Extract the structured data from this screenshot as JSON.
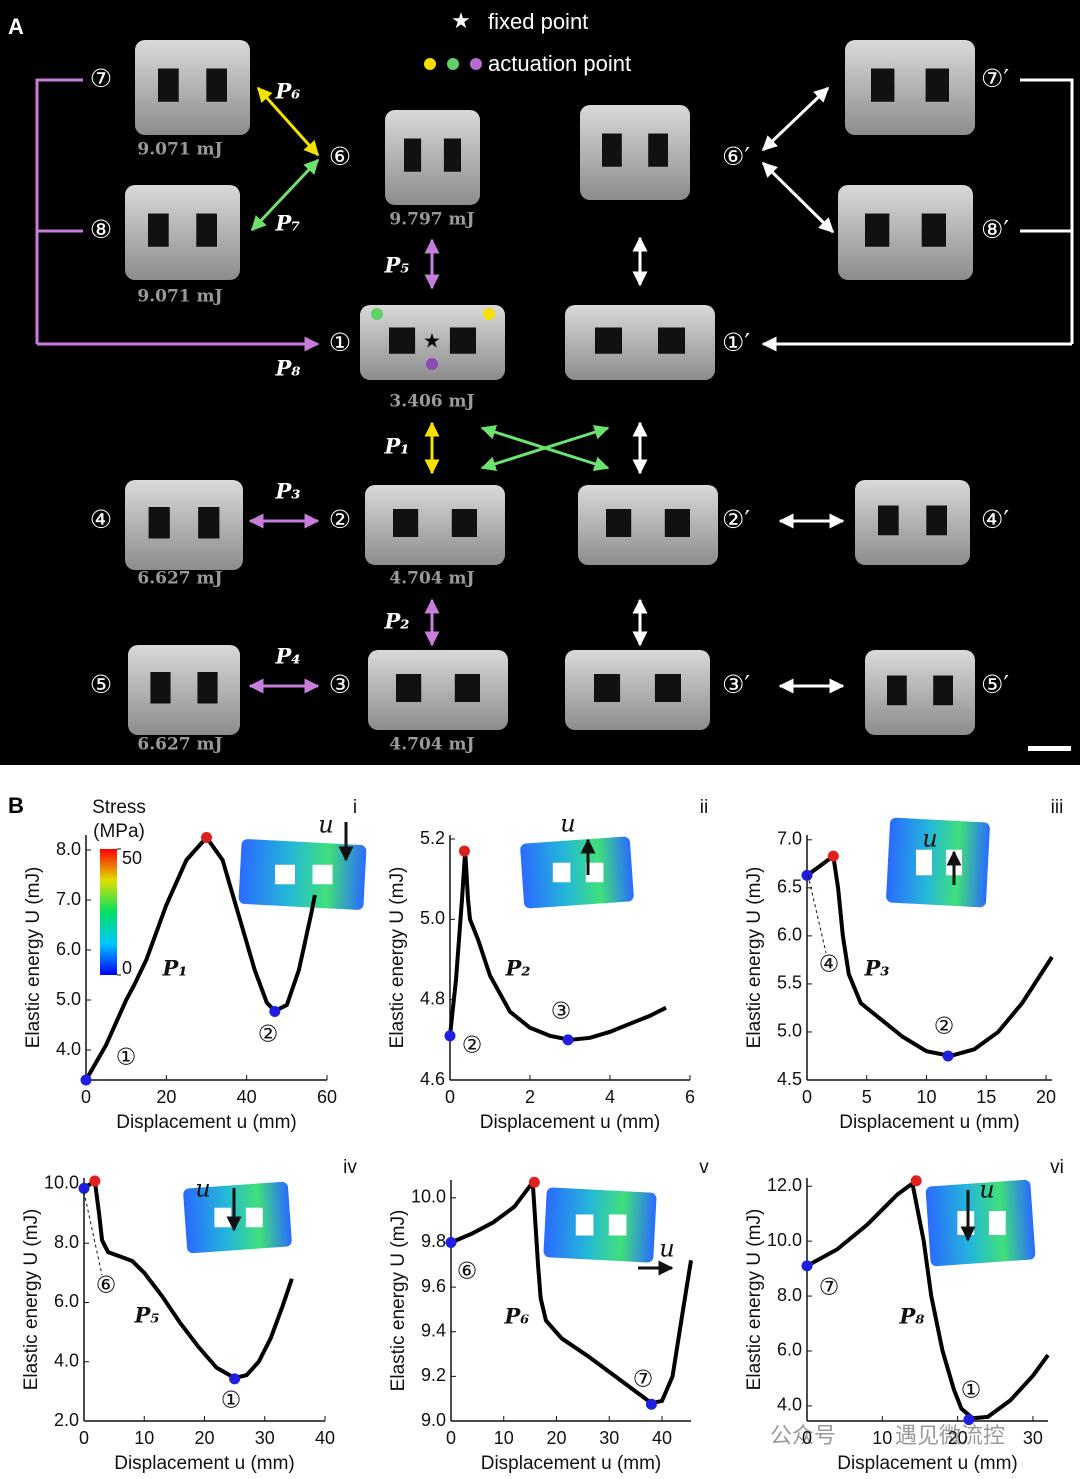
{
  "panel_a": {
    "label": "A",
    "legend": {
      "fixed": "fixed point",
      "actuation": "actuation point"
    },
    "nodes": [
      {
        "label": "⑦",
        "energy": "9.071 mJ"
      },
      {
        "label": "⑧",
        "energy": "9.071 mJ"
      },
      {
        "label": "⑥",
        "energy": "9.797 mJ"
      },
      {
        "label": "①",
        "energy": "3.406 mJ"
      },
      {
        "label": "②",
        "energy": "4.704 mJ"
      },
      {
        "label": "③",
        "energy": "4.704 mJ"
      },
      {
        "label": "④",
        "energy": "6.627 mJ"
      },
      {
        "label": "⑤",
        "energy": "6.627 mJ"
      }
    ],
    "primed_nodes": [
      "⑥′",
      "⑦′",
      "⑧′",
      "①′",
      "②′",
      "③′",
      "④′",
      "⑤′"
    ],
    "paths": [
      "P₁",
      "P₂",
      "P₃",
      "P₄",
      "P₅",
      "P₆",
      "P₇",
      "P₈"
    ]
  },
  "panel_b_label": "B",
  "watermark": [
    "公众号",
    "遇见微流控"
  ],
  "chart_data": [
    {
      "type": "line",
      "label": "i",
      "xlabel": "Displacement u (mm)",
      "ylabel": "Elastic energy U (mJ)",
      "xlim": [
        0,
        60
      ],
      "ylim": [
        3.4,
        8.3
      ],
      "xticks": [
        0,
        20,
        40,
        60
      ],
      "yticks": [
        {
          "value": 4,
          "label": "4.0"
        },
        {
          "value": 5,
          "label": "5.0"
        },
        {
          "value": 6,
          "label": "6.0"
        },
        {
          "value": 7,
          "label": "7.0"
        },
        {
          "value": 8,
          "label": "8.0"
        }
      ],
      "color": "#000000",
      "x": [
        0,
        5,
        10,
        12,
        15,
        20,
        25,
        30,
        34,
        38,
        42,
        45,
        47,
        50,
        53,
        56,
        57
      ],
      "values": [
        3.4,
        4.1,
        5.0,
        5.3,
        5.8,
        6.9,
        7.8,
        8.25,
        7.8,
        6.7,
        5.6,
        4.95,
        4.78,
        4.9,
        5.6,
        6.7,
        7.1
      ],
      "markers": {
        "x": [
          0,
          30,
          47
        ],
        "values": [
          3.4,
          8.25,
          4.77
        ],
        "colors": [
          "#1f1fe0",
          "#e01f1f",
          "#1f1fe0"
        ]
      },
      "annotations": [
        "①",
        "②",
        "P₁"
      ],
      "inset_label": "u",
      "colorbar": {
        "title": "Stress",
        "unit": "(MPa)",
        "clim": [
          0,
          50
        ],
        "cticks": [
          0,
          50
        ]
      }
    },
    {
      "type": "line",
      "label": "ii",
      "xlabel": "Displacement u (mm)",
      "ylabel": "Elastic energy U (mJ)",
      "xlim": [
        0,
        6
      ],
      "ylim": [
        4.6,
        5.21
      ],
      "xticks": [
        0,
        2,
        4,
        6
      ],
      "yticks": [
        4.6,
        4.8,
        {
          "value": 5,
          "label": "5.0"
        },
        5.2
      ],
      "color": "#000000",
      "x": [
        0,
        0.15,
        0.3,
        0.38,
        0.45,
        0.5,
        0.7,
        1.0,
        1.5,
        2,
        2.5,
        3,
        3.5,
        4,
        4.5,
        5,
        5.4
      ],
      "values": [
        4.71,
        4.85,
        5.05,
        5.17,
        5.05,
        5.0,
        4.95,
        4.86,
        4.77,
        4.73,
        4.71,
        4.7,
        4.705,
        4.72,
        4.74,
        4.76,
        4.78
      ],
      "markers": {
        "x": [
          0,
          0.36,
          2.95
        ],
        "values": [
          4.71,
          5.17,
          4.7
        ],
        "colors": [
          "#1f1fe0",
          "#e01f1f",
          "#1f1fe0"
        ]
      },
      "annotations": [
        "②",
        "③",
        "P₂"
      ],
      "inset_label": "u"
    },
    {
      "type": "line",
      "label": "iii",
      "xlabel": "Displacement u (mm)",
      "ylabel": "Elastic energy U (mJ)",
      "xlim": [
        0,
        20.5
      ],
      "ylim": [
        4.5,
        7.05
      ],
      "xticks": [
        0,
        5,
        10,
        15,
        20
      ],
      "yticks": [
        4.5,
        {
          "value": 5,
          "label": "5.0"
        },
        5.5,
        {
          "value": 6,
          "label": "6.0"
        },
        6.5,
        {
          "value": 7,
          "label": "7.0"
        }
      ],
      "color": "#000000",
      "x": [
        0,
        1,
        2.2,
        2.6,
        3,
        3.5,
        4.5,
        6,
        8,
        10,
        12,
        14,
        16,
        18,
        20.5
      ],
      "values": [
        6.63,
        6.72,
        6.83,
        6.5,
        6.0,
        5.6,
        5.3,
        5.15,
        4.95,
        4.8,
        4.75,
        4.82,
        5.0,
        5.3,
        5.78
      ],
      "markers": {
        "x": [
          0,
          2.2,
          11.8
        ],
        "values": [
          6.63,
          6.83,
          4.75
        ],
        "colors": [
          "#1f1fe0",
          "#e01f1f",
          "#1f1fe0"
        ]
      },
      "annotations": [
        "④",
        "②",
        "P₃"
      ],
      "inset_label": "u"
    },
    {
      "type": "line",
      "label": "iv",
      "xlabel": "Displacement u (mm)",
      "ylabel": "Elastic energy U (mJ)",
      "xlim": [
        0,
        40
      ],
      "ylim": [
        2,
        10.2
      ],
      "xticks": [
        0,
        10,
        20,
        30,
        40
      ],
      "yticks": [
        {
          "value": 2,
          "label": "2.0"
        },
        {
          "value": 4,
          "label": "4.0"
        },
        {
          "value": 6,
          "label": "6.0"
        },
        {
          "value": 8,
          "label": "8.0"
        },
        {
          "value": 10,
          "label": "10.0"
        }
      ],
      "color": "#000000",
      "x": [
        0,
        1.8,
        2.5,
        3,
        4,
        6,
        8,
        10,
        13,
        16,
        19,
        22,
        25,
        27,
        29,
        31,
        33,
        34.5
      ],
      "values": [
        9.85,
        10.1,
        9.0,
        8.1,
        7.7,
        7.55,
        7.4,
        7.0,
        6.2,
        5.3,
        4.5,
        3.8,
        3.45,
        3.55,
        4.0,
        4.8,
        5.9,
        6.8
      ],
      "markers": {
        "x": [
          0,
          1.8,
          25
        ],
        "values": [
          9.85,
          10.1,
          3.42
        ],
        "colors": [
          "#1f1fe0",
          "#e01f1f",
          "#1f1fe0"
        ]
      },
      "annotations": [
        "⑥",
        "①",
        "P₅"
      ],
      "inset_label": "u"
    },
    {
      "type": "line",
      "label": "v",
      "xlabel": "Displacement u (mm)",
      "ylabel": "Elastic energy U (mJ)",
      "xlim": [
        0,
        45.5
      ],
      "ylim": [
        9.0,
        10.08
      ],
      "xticks": [
        0,
        10,
        20,
        30,
        40
      ],
      "yticks": [
        {
          "value": 9,
          "label": "9.0"
        },
        9.2,
        9.4,
        9.6,
        9.8,
        {
          "value": 10,
          "label": "10.0"
        }
      ],
      "color": "#000000",
      "x": [
        0,
        4,
        8,
        12,
        15.5,
        16.5,
        17,
        18,
        21,
        26,
        30,
        34,
        38,
        40,
        42,
        44,
        45.5
      ],
      "values": [
        9.8,
        9.84,
        9.89,
        9.96,
        10.07,
        9.7,
        9.55,
        9.45,
        9.37,
        9.29,
        9.22,
        9.15,
        9.08,
        9.09,
        9.2,
        9.5,
        9.72
      ],
      "markers": {
        "x": [
          0,
          15.8,
          38
        ],
        "values": [
          9.8,
          10.07,
          9.075
        ],
        "colors": [
          "#1f1fe0",
          "#e01f1f",
          "#1f1fe0"
        ]
      },
      "annotations": [
        "⑥",
        "⑦",
        "P₆"
      ],
      "inset_label": "u"
    },
    {
      "type": "line",
      "label": "vi",
      "xlabel": "Displacement u (mm)",
      "ylabel": "Elastic energy U (mJ)",
      "xlim": [
        0,
        32
      ],
      "ylim": [
        3.45,
        12.3
      ],
      "xticks": [
        0,
        10,
        20,
        30
      ],
      "yticks": [
        {
          "value": 4,
          "label": "4.0"
        },
        {
          "value": 6,
          "label": "6.0"
        },
        {
          "value": 8,
          "label": "8.0"
        },
        {
          "value": 10,
          "label": "10.0"
        },
        {
          "value": 12,
          "label": "12.0"
        }
      ],
      "color": "#000000",
      "x": [
        0,
        4,
        8,
        12,
        14,
        15.5,
        16.5,
        18,
        19.5,
        20.5,
        22,
        24,
        27,
        30,
        32
      ],
      "values": [
        9.1,
        9.7,
        10.6,
        11.7,
        12.1,
        10,
        8,
        6,
        4.6,
        3.9,
        3.55,
        3.6,
        4.2,
        5.1,
        5.85
      ],
      "markers": {
        "x": [
          0,
          14.5,
          21.5
        ],
        "values": [
          9.1,
          12.2,
          3.5
        ],
        "colors": [
          "#1f1fe0",
          "#e01f1f",
          "#1f1fe0"
        ]
      },
      "annotations": [
        "⑦",
        "①",
        "P₈"
      ],
      "inset_label": "u"
    }
  ]
}
